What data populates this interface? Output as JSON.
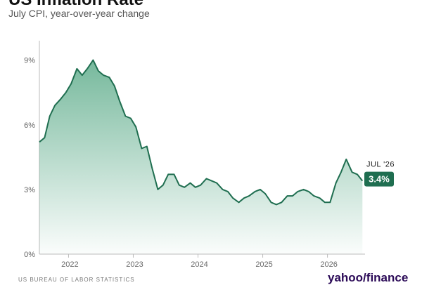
{
  "header": {
    "title": "US Inflation Rate",
    "subtitle": "July CPI, year-over-year change"
  },
  "footer": {
    "source": "US BUREAU OF LABOR STATISTICS",
    "logo": "yahoo/finance"
  },
  "colors": {
    "line": "#1f6e50",
    "area_top": "#6fb597",
    "badge": "#1f6e50",
    "axis": "#bbbbbb"
  },
  "chart_data": {
    "type": "area",
    "title": "US Inflation Rate",
    "subtitle": "July CPI, year-over-year change",
    "xlabel": "",
    "ylabel": "",
    "x_tick_labels": [
      "2022",
      "2023",
      "2024",
      "2025",
      "2026"
    ],
    "y_ticks": [
      0,
      3,
      6,
      9
    ],
    "y_tick_labels": [
      "0%",
      "3%",
      "6%",
      "9%"
    ],
    "ylim": [
      0,
      9.9
    ],
    "xlim": [
      2021.55,
      2026.58
    ],
    "grid": false,
    "legend": "none",
    "series": [
      {
        "x": [
          2021.55,
          2021.63,
          2021.71,
          2021.79,
          2021.88,
          2021.96,
          2022.04,
          2022.13,
          2022.21,
          2022.29,
          2022.38,
          2022.46,
          2022.54,
          2022.63,
          2022.71,
          2022.79,
          2022.88,
          2022.96,
          2023.04,
          2023.13,
          2023.21,
          2023.29,
          2023.38,
          2023.46,
          2023.54,
          2023.63,
          2023.71,
          2023.79,
          2023.88,
          2023.96,
          2024.04,
          2024.13,
          2024.21,
          2024.29,
          2024.38,
          2024.46,
          2024.54,
          2024.63,
          2024.71,
          2024.79,
          2024.88,
          2024.96,
          2025.04,
          2025.13,
          2025.21,
          2025.29,
          2025.38,
          2025.46,
          2025.54,
          2025.63,
          2025.71,
          2025.79,
          2025.88,
          2025.96,
          2026.04,
          2026.13,
          2026.21,
          2026.29,
          2026.38,
          2026.46,
          2026.54
        ],
        "y": [
          5.2,
          5.4,
          6.4,
          6.9,
          7.2,
          7.5,
          7.9,
          8.6,
          8.3,
          8.6,
          9.0,
          8.5,
          8.3,
          8.2,
          7.8,
          7.1,
          6.4,
          6.3,
          5.9,
          4.9,
          5.0,
          4.0,
          3.0,
          3.2,
          3.7,
          3.7,
          3.2,
          3.1,
          3.3,
          3.1,
          3.2,
          3.5,
          3.4,
          3.3,
          3.0,
          2.9,
          2.6,
          2.4,
          2.6,
          2.7,
          2.9,
          3.0,
          2.8,
          2.4,
          2.3,
          2.4,
          2.7,
          2.7,
          2.9,
          3.0,
          2.9,
          2.7,
          2.6,
          2.4,
          2.4,
          3.3,
          3.8,
          4.4,
          3.8,
          3.7,
          3.4
        ]
      }
    ],
    "annotation": {
      "month": "JUL '26",
      "value_label": "3.4%",
      "value": 3.4
    }
  }
}
